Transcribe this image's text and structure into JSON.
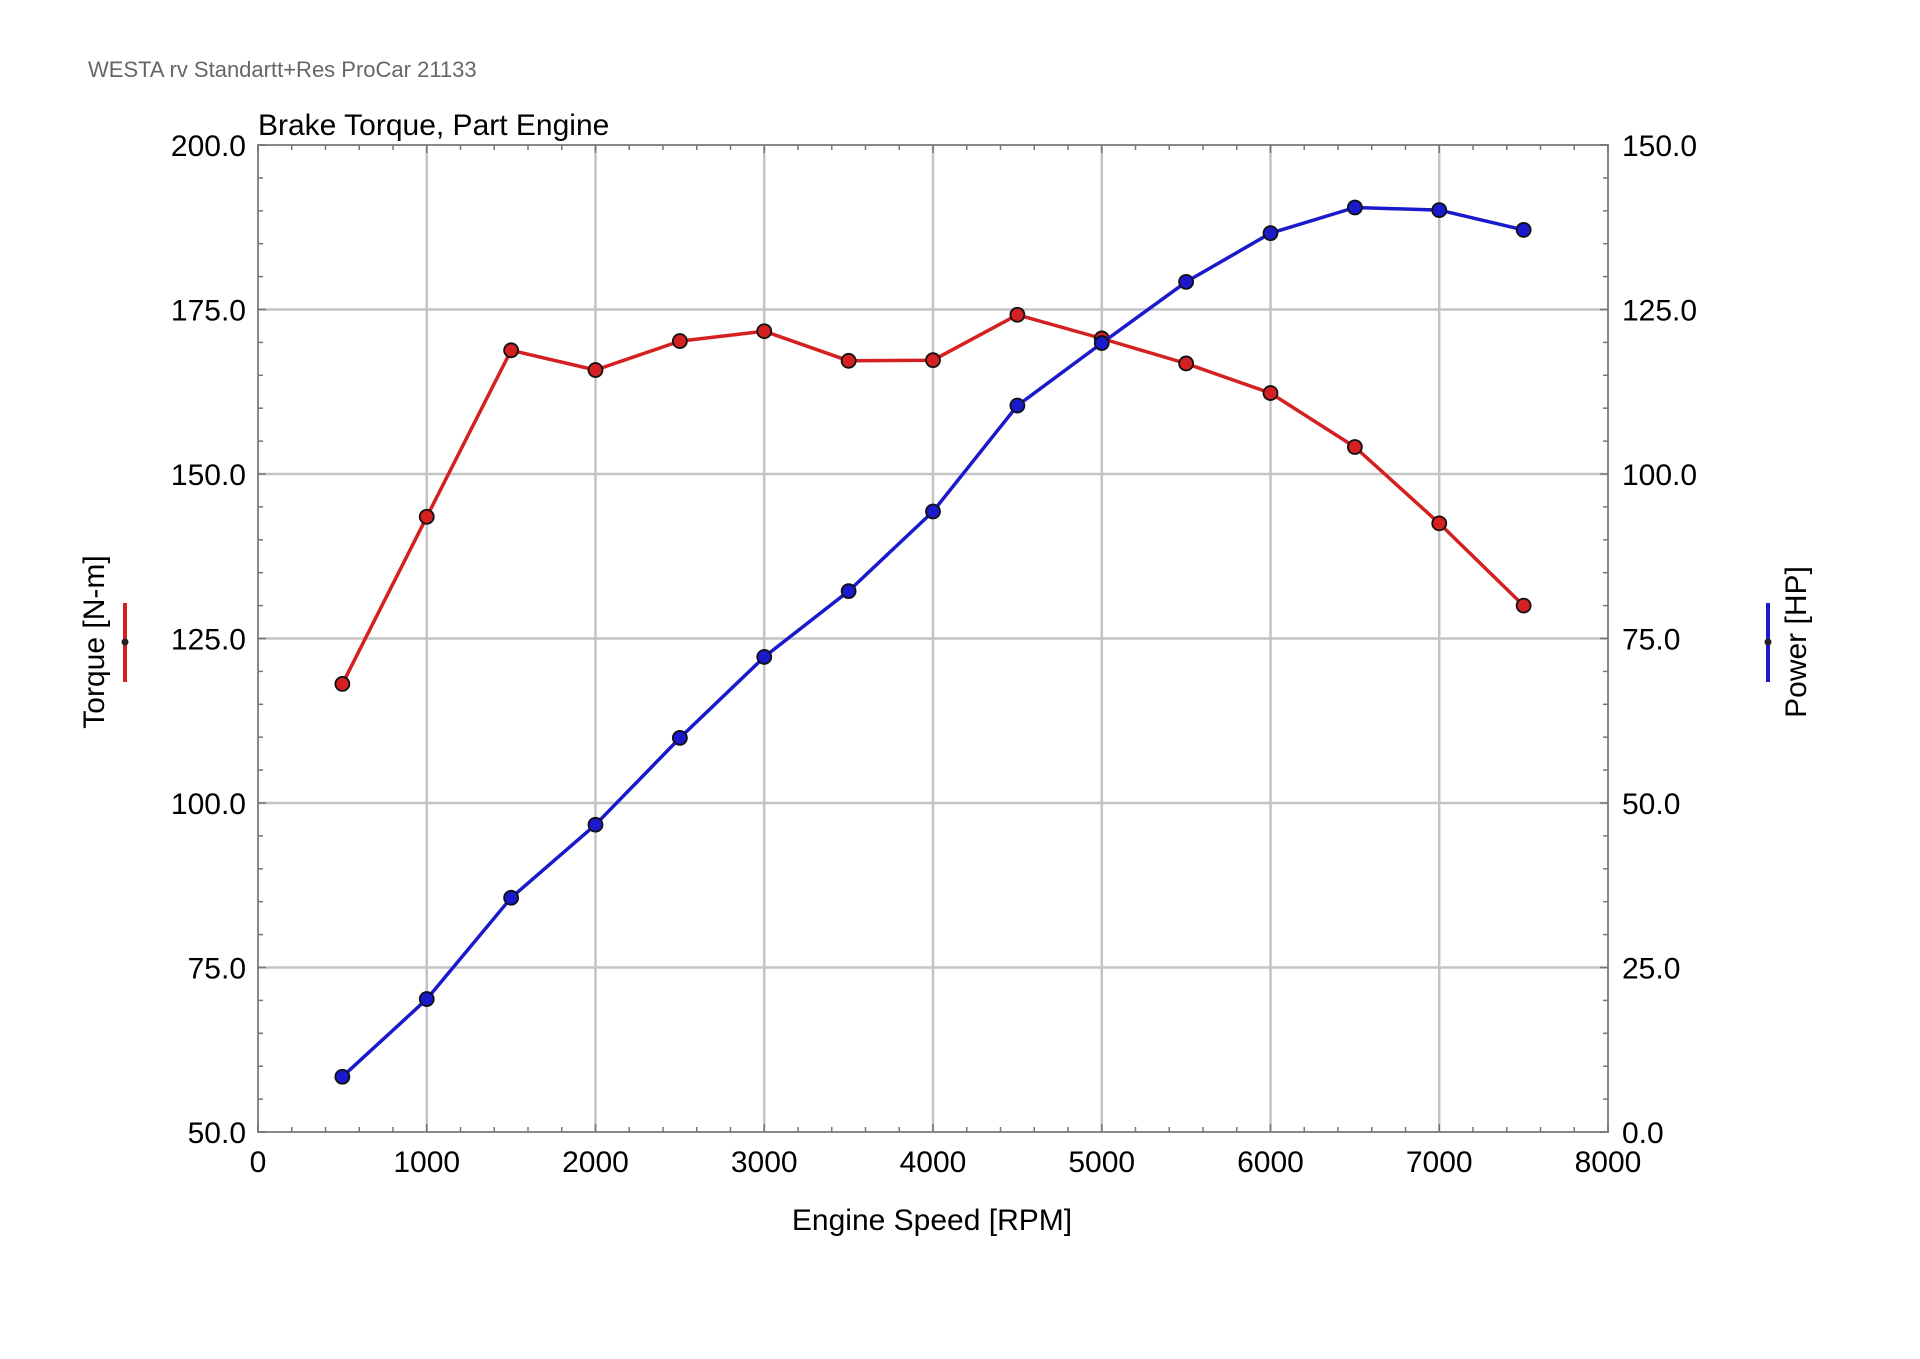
{
  "header": "WESTA rv Standartt+Res ProCar 21133",
  "chart_data": {
    "type": "line",
    "title": "Brake Torque, Part Engine",
    "xlabel": "Engine Speed [RPM]",
    "ylabel_left": "Torque [N-m]",
    "ylabel_right": "Power [HP]",
    "xlim": [
      0,
      8000
    ],
    "ylim_left": [
      50,
      200
    ],
    "ylim_right": [
      0,
      150
    ],
    "x_ticks": [
      "0",
      "1000",
      "2000",
      "3000",
      "4000",
      "5000",
      "6000",
      "7000",
      "8000"
    ],
    "y_left_ticks": [
      "50.0",
      "75.0",
      "100.0",
      "125.0",
      "150.0",
      "175.0",
      "200.0"
    ],
    "y_right_ticks": [
      "0.0",
      "25.0",
      "50.0",
      "75.0",
      "100.0",
      "125.0",
      "150.0"
    ],
    "grid": true,
    "x": [
      500,
      1000,
      1500,
      2000,
      2500,
      3000,
      3500,
      4000,
      4500,
      5000,
      5500,
      6000,
      6500,
      7000,
      7500
    ],
    "series": [
      {
        "axis": "left",
        "color": "#d42020",
        "values": [
          118.1,
          143.5,
          168.8,
          165.8,
          170.2,
          171.7,
          167.2,
          167.3,
          174.2,
          170.6,
          166.8,
          162.3,
          154.1,
          142.5,
          130.0
        ]
      },
      {
        "axis": "right",
        "color": "#1a1acc",
        "values": [
          8.4,
          20.2,
          35.6,
          46.7,
          59.9,
          72.2,
          82.2,
          94.3,
          110.4,
          119.9,
          129.2,
          136.6,
          140.5,
          140.1,
          137.1
        ]
      }
    ]
  }
}
